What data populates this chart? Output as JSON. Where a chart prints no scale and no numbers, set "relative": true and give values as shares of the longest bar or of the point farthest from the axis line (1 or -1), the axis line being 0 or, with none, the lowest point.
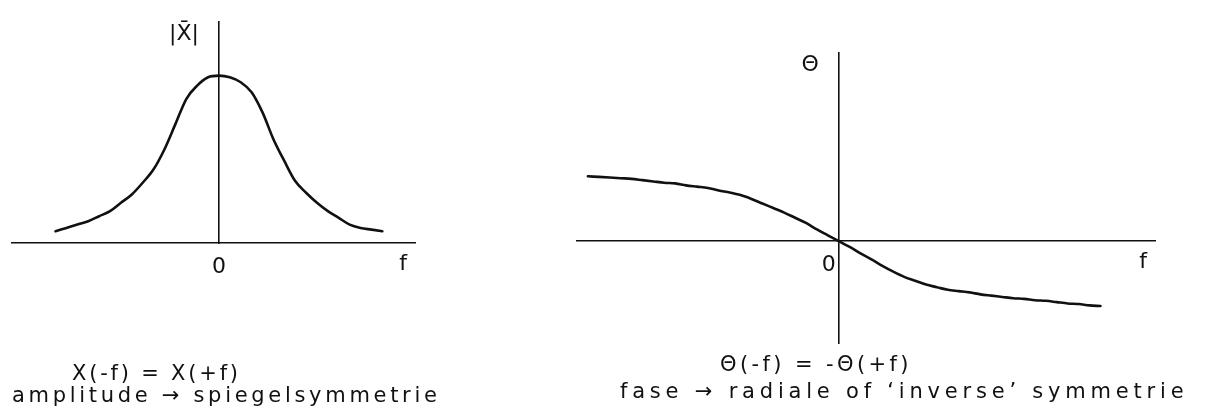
{
  "chart_data": [
    {
      "type": "line",
      "xlabel": "f",
      "ylabel": "|X̄|",
      "relative": true,
      "color": "#111111",
      "categories": [
        null,
        null,
        null,
        null,
        null,
        null,
        null,
        null,
        null,
        null,
        null,
        null,
        null,
        null,
        null,
        null,
        null,
        null,
        null,
        null,
        null,
        null,
        null,
        null,
        null,
        null,
        null,
        null,
        null,
        null,
        null,
        null,
        null,
        null,
        null,
        null,
        null,
        null
      ],
      "values": [
        null,
        null,
        null,
        null,
        0.07,
        0.09,
        0.11,
        0.13,
        0.16,
        0.19,
        0.24,
        0.29,
        0.36,
        0.44,
        0.56,
        0.71,
        0.86,
        0.94,
        0.99,
        1.0,
        0.99,
        0.96,
        0.9,
        0.78,
        0.62,
        0.49,
        0.37,
        0.3,
        0.24,
        0.19,
        0.15,
        0.11,
        0.09,
        0.08,
        0.07,
        null,
        null,
        null
      ],
      "annotations": [
        "0",
        "X(-f) = X(+f)",
        "amplitude → spiegelsymmetrie"
      ]
    },
    {
      "type": "line",
      "xlabel": "f",
      "ylabel": "Θ",
      "relative": true,
      "color": "#111111",
      "categories": [
        null,
        null,
        null,
        null,
        null,
        null,
        null,
        null,
        null,
        null,
        null,
        null,
        null,
        null,
        null,
        null,
        null,
        null,
        null,
        null,
        null,
        null,
        null,
        null,
        null,
        null,
        null,
        null,
        null,
        null,
        null,
        null,
        null,
        null,
        null,
        null,
        null,
        null,
        null,
        null,
        null,
        null,
        null,
        null,
        null,
        null,
        null,
        null,
        null,
        null,
        null,
        null,
        null,
        null
      ],
      "values": [
        null,
        1.0,
        0.99,
        0.98,
        0.97,
        0.96,
        0.94,
        0.92,
        0.9,
        0.89,
        0.86,
        0.84,
        0.82,
        0.78,
        0.75,
        0.71,
        0.65,
        0.58,
        0.51,
        0.44,
        0.36,
        0.28,
        0.18,
        0.09,
        0,
        -0.09,
        -0.19,
        -0.28,
        -0.38,
        -0.47,
        -0.55,
        -0.61,
        -0.67,
        -0.71,
        -0.75,
        -0.77,
        -0.79,
        -0.82,
        -0.84,
        -0.86,
        -0.88,
        -0.89,
        -0.91,
        -0.92,
        -0.94,
        -0.96,
        -0.97,
        -0.99,
        -1.0,
        null,
        null,
        null,
        null,
        null
      ],
      "annotations": [
        "0",
        "Θ(-f) = -Θ(+f)",
        "fase → radiale of ‘inverse’ symmetrie"
      ]
    }
  ]
}
